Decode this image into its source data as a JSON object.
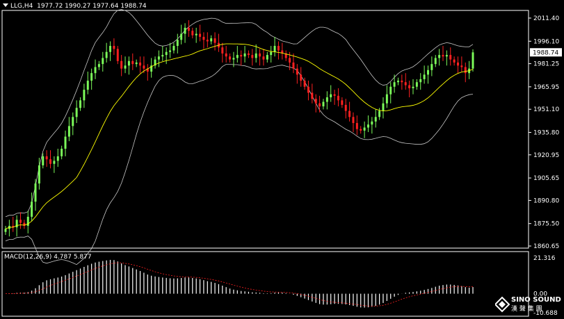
{
  "header": {
    "symbol": "LLG,H4",
    "ohlc": "1977.72 1990.27 1977.64 1988.74"
  },
  "price_axis": {
    "labels": [
      "2011.40",
      "1996.10",
      "1981.25",
      "1965.95",
      "1951.10",
      "1935.80",
      "1920.95",
      "1905.65",
      "1890.80",
      "1875.50",
      "1860.65"
    ],
    "current_price": "1988.74"
  },
  "macd": {
    "label": "MACD(12,26,9) 4.787 5.877",
    "axis_labels": [
      "21.316",
      "0.00",
      "-10.688"
    ]
  },
  "logo": {
    "name": "SINO SOUND",
    "glyphs": "漢 聲 集 團"
  },
  "colors": {
    "background": "#000000",
    "bull": "#7CFC5A",
    "bear": "#FF2020",
    "ma": "#FFFF00",
    "bands": "#C8C8C8",
    "signal": "#FF2020",
    "axis": "#FFFFFF"
  },
  "chart_data": {
    "type": "candlestick",
    "title": "LLG,H4",
    "timeframe": "H4",
    "ylim": [
      1860.65,
      2019
    ],
    "indicators": [
      "Bollinger Bands",
      "Moving Average",
      "MACD(12,26,9)"
    ],
    "closes": [
      1872,
      1874,
      1873,
      1878,
      1876,
      1874,
      1880,
      1890,
      1902,
      1914,
      1920,
      1918,
      1915,
      1917,
      1920,
      1925,
      1933,
      1940,
      1946,
      1952,
      1957,
      1964,
      1970,
      1975,
      1979,
      1981,
      1985,
      1989,
      1993,
      1991,
      1983,
      1978,
      1980,
      1983,
      1981,
      1982,
      1980,
      1978,
      1976,
      1980,
      1984,
      1986,
      1987,
      1989,
      1990,
      1993,
      1997,
      2001,
      2005,
      2003,
      2000,
      2001,
      1999,
      1997,
      1996,
      1998,
      1995,
      1992,
      1988,
      1986,
      1984,
      1985,
      1987,
      1986,
      1988,
      1987,
      1985,
      1988,
      1986,
      1984,
      1987,
      1989,
      1993,
      1990,
      1988,
      1985,
      1982,
      1978,
      1974,
      1970,
      1966,
      1962,
      1958,
      1955,
      1953,
      1956,
      1959,
      1961,
      1960,
      1957,
      1954,
      1950,
      1946,
      1942,
      1938,
      1937,
      1939,
      1941,
      1943,
      1946,
      1950,
      1955,
      1961,
      1966,
      1969,
      1970,
      1969,
      1967,
      1965,
      1966,
      1969,
      1971,
      1974,
      1977,
      1981,
      1985,
      1987,
      1986,
      1987,
      1984,
      1982,
      1980,
      1979,
      1975,
      1978,
      1988.74
    ],
    "current_price": 1988.74,
    "macd": {
      "ylim": [
        -10.688,
        21.316
      ],
      "params": [
        12,
        26,
        9
      ],
      "macd_value": 4.787,
      "signal_value": 5.877
    }
  }
}
